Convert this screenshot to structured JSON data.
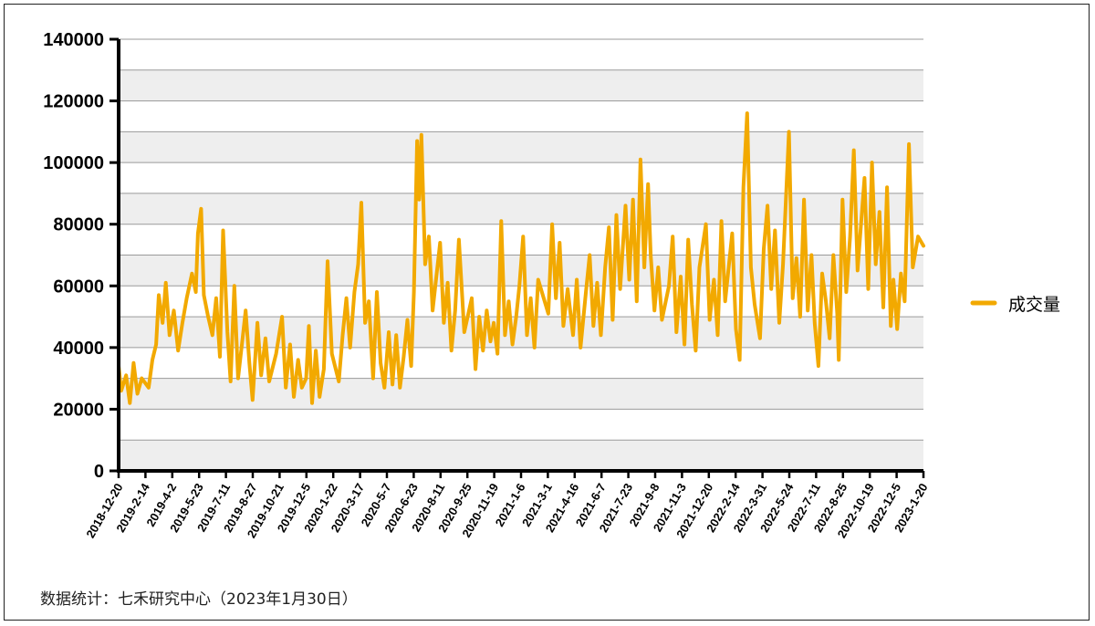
{
  "chart_data": {
    "type": "line",
    "title": "",
    "xlabel": "",
    "ylabel": "",
    "ylim": [
      0,
      140000
    ],
    "y_ticks": [
      0,
      20000,
      40000,
      60000,
      80000,
      100000,
      120000,
      140000
    ],
    "x_range": [
      "2018-12-20",
      "2023-01-30"
    ],
    "x_tick_labels": [
      "2018-12-20",
      "2019-2-14",
      "2019-4-2",
      "2019-5-23",
      "2019-7-11",
      "2019-8-27",
      "2019-10-21",
      "2019-12-5",
      "2020-1-22",
      "2020-3-17",
      "2020-5-7",
      "2020-6-23",
      "2020-8-11",
      "2020-9-25",
      "2020-11-19",
      "2021-1-6",
      "2021-3-1",
      "2021-4-16",
      "2021-6-7",
      "2021-7-23",
      "2021-9-8",
      "2021-11-3",
      "2021-12-20",
      "2022-2-14",
      "2022-3-31",
      "2022-5-24",
      "2022-7-11",
      "2022-8-25",
      "2022-10-19",
      "2022-12-5",
      "2023-1-20"
    ],
    "grid": "horizontal, alternating band shading",
    "legend_position": "right",
    "series": [
      {
        "name": "成交量",
        "color": "#F2A900",
        "points": [
          [
            "2018-12-20",
            34000
          ],
          [
            "2018-12-25",
            26000
          ],
          [
            "2019-1-3",
            31000
          ],
          [
            "2019-1-10",
            22000
          ],
          [
            "2019-1-17",
            35000
          ],
          [
            "2019-1-24",
            25000
          ],
          [
            "2019-2-1",
            30000
          ],
          [
            "2019-2-14",
            27000
          ],
          [
            "2019-2-21",
            36000
          ],
          [
            "2019-2-28",
            41000
          ],
          [
            "2019-3-5",
            57000
          ],
          [
            "2019-3-12",
            48000
          ],
          [
            "2019-3-18",
            61000
          ],
          [
            "2019-3-25",
            44000
          ],
          [
            "2019-4-2",
            52000
          ],
          [
            "2019-4-10",
            39000
          ],
          [
            "2019-4-18",
            48000
          ],
          [
            "2019-4-26",
            56000
          ],
          [
            "2019-5-6",
            64000
          ],
          [
            "2019-5-13",
            58000
          ],
          [
            "2019-5-17",
            77000
          ],
          [
            "2019-5-23",
            85000
          ],
          [
            "2019-5-28",
            57000
          ],
          [
            "2019-6-5",
            50000
          ],
          [
            "2019-6-13",
            44000
          ],
          [
            "2019-6-20",
            56000
          ],
          [
            "2019-6-27",
            37000
          ],
          [
            "2019-7-3",
            78000
          ],
          [
            "2019-7-11",
            45000
          ],
          [
            "2019-7-17",
            29000
          ],
          [
            "2019-7-24",
            60000
          ],
          [
            "2019-7-31",
            30000
          ],
          [
            "2019-8-7",
            41000
          ],
          [
            "2019-8-14",
            52000
          ],
          [
            "2019-8-21",
            35000
          ],
          [
            "2019-8-27",
            23000
          ],
          [
            "2019-9-5",
            48000
          ],
          [
            "2019-9-12",
            31000
          ],
          [
            "2019-9-20",
            43000
          ],
          [
            "2019-9-27",
            29000
          ],
          [
            "2019-10-10",
            38000
          ],
          [
            "2019-10-21",
            50000
          ],
          [
            "2019-10-28",
            27000
          ],
          [
            "2019-11-5",
            41000
          ],
          [
            "2019-11-12",
            24000
          ],
          [
            "2019-11-20",
            36000
          ],
          [
            "2019-11-27",
            27000
          ],
          [
            "2019-12-5",
            30000
          ],
          [
            "2019-12-10",
            47000
          ],
          [
            "2019-12-16",
            22000
          ],
          [
            "2019-12-23",
            39000
          ],
          [
            "2019-12-30",
            24000
          ],
          [
            "2020-1-7",
            33000
          ],
          [
            "2020-1-14",
            68000
          ],
          [
            "2020-1-22",
            38000
          ],
          [
            "2020-2-4",
            29000
          ],
          [
            "2020-2-11",
            44000
          ],
          [
            "2020-2-18",
            56000
          ],
          [
            "2020-2-25",
            40000
          ],
          [
            "2020-3-4",
            58000
          ],
          [
            "2020-3-11",
            67000
          ],
          [
            "2020-3-17",
            87000
          ],
          [
            "2020-3-24",
            48000
          ],
          [
            "2020-3-31",
            55000
          ],
          [
            "2020-4-8",
            30000
          ],
          [
            "2020-4-15",
            58000
          ],
          [
            "2020-4-22",
            35000
          ],
          [
            "2020-4-29",
            27000
          ],
          [
            "2020-5-7",
            45000
          ],
          [
            "2020-5-14",
            28000
          ],
          [
            "2020-5-21",
            44000
          ],
          [
            "2020-5-28",
            27000
          ],
          [
            "2020-6-4",
            37000
          ],
          [
            "2020-6-11",
            49000
          ],
          [
            "2020-6-18",
            34000
          ],
          [
            "2020-6-23",
            58000
          ],
          [
            "2020-6-29",
            107000
          ],
          [
            "2020-7-3",
            88000
          ],
          [
            "2020-7-7",
            109000
          ],
          [
            "2020-7-14",
            67000
          ],
          [
            "2020-7-21",
            76000
          ],
          [
            "2020-7-28",
            52000
          ],
          [
            "2020-8-4",
            63000
          ],
          [
            "2020-8-11",
            74000
          ],
          [
            "2020-8-18",
            48000
          ],
          [
            "2020-8-25",
            61000
          ],
          [
            "2020-9-1",
            39000
          ],
          [
            "2020-9-8",
            52000
          ],
          [
            "2020-9-15",
            75000
          ],
          [
            "2020-9-25",
            45000
          ],
          [
            "2020-10-9",
            56000
          ],
          [
            "2020-10-16",
            33000
          ],
          [
            "2020-10-23",
            50000
          ],
          [
            "2020-10-30",
            39000
          ],
          [
            "2020-11-6",
            52000
          ],
          [
            "2020-11-13",
            42000
          ],
          [
            "2020-11-19",
            48000
          ],
          [
            "2020-11-26",
            38000
          ],
          [
            "2020-12-3",
            81000
          ],
          [
            "2020-12-10",
            44000
          ],
          [
            "2020-12-17",
            55000
          ],
          [
            "2020-12-24",
            41000
          ],
          [
            "2020-12-31",
            50000
          ],
          [
            "2021-1-6",
            60000
          ],
          [
            "2021-1-13",
            76000
          ],
          [
            "2021-1-20",
            44000
          ],
          [
            "2021-1-27",
            56000
          ],
          [
            "2021-2-3",
            40000
          ],
          [
            "2021-2-10",
            62000
          ],
          [
            "2021-3-1",
            51000
          ],
          [
            "2021-3-8",
            80000
          ],
          [
            "2021-3-15",
            56000
          ],
          [
            "2021-3-22",
            74000
          ],
          [
            "2021-3-29",
            47000
          ],
          [
            "2021-4-6",
            59000
          ],
          [
            "2021-4-16",
            44000
          ],
          [
            "2021-4-23",
            62000
          ],
          [
            "2021-4-30",
            40000
          ],
          [
            "2021-5-10",
            58000
          ],
          [
            "2021-5-17",
            70000
          ],
          [
            "2021-5-24",
            47000
          ],
          [
            "2021-5-31",
            61000
          ],
          [
            "2021-6-7",
            44000
          ],
          [
            "2021-6-15",
            66000
          ],
          [
            "2021-6-22",
            79000
          ],
          [
            "2021-6-29",
            49000
          ],
          [
            "2021-7-6",
            83000
          ],
          [
            "2021-7-13",
            59000
          ],
          [
            "2021-7-23",
            86000
          ],
          [
            "2021-7-30",
            62000
          ],
          [
            "2021-8-6",
            88000
          ],
          [
            "2021-8-13",
            55000
          ],
          [
            "2021-8-20",
            101000
          ],
          [
            "2021-8-27",
            66000
          ],
          [
            "2021-9-3",
            93000
          ],
          [
            "2021-9-8",
            70000
          ],
          [
            "2021-9-15",
            52000
          ],
          [
            "2021-9-22",
            66000
          ],
          [
            "2021-9-29",
            49000
          ],
          [
            "2021-10-12",
            60000
          ],
          [
            "2021-10-19",
            76000
          ],
          [
            "2021-10-26",
            45000
          ],
          [
            "2021-11-3",
            63000
          ],
          [
            "2021-11-10",
            41000
          ],
          [
            "2021-11-17",
            75000
          ],
          [
            "2021-11-24",
            54000
          ],
          [
            "2021-12-1",
            39000
          ],
          [
            "2021-12-8",
            66000
          ],
          [
            "2021-12-20",
            80000
          ],
          [
            "2021-12-27",
            49000
          ],
          [
            "2022-1-4",
            62000
          ],
          [
            "2022-1-11",
            44000
          ],
          [
            "2022-1-18",
            81000
          ],
          [
            "2022-1-25",
            55000
          ],
          [
            "2022-2-7",
            77000
          ],
          [
            "2022-2-14",
            46000
          ],
          [
            "2022-2-21",
            36000
          ],
          [
            "2022-2-28",
            92000
          ],
          [
            "2022-3-7",
            116000
          ],
          [
            "2022-3-14",
            66000
          ],
          [
            "2022-3-21",
            54000
          ],
          [
            "2022-3-31",
            43000
          ],
          [
            "2022-4-7",
            72000
          ],
          [
            "2022-4-14",
            86000
          ],
          [
            "2022-4-21",
            59000
          ],
          [
            "2022-4-28",
            78000
          ],
          [
            "2022-5-6",
            48000
          ],
          [
            "2022-5-13",
            67000
          ],
          [
            "2022-5-24",
            110000
          ],
          [
            "2022-5-31",
            56000
          ],
          [
            "2022-6-7",
            69000
          ],
          [
            "2022-6-14",
            50000
          ],
          [
            "2022-6-21",
            88000
          ],
          [
            "2022-6-28",
            52000
          ],
          [
            "2022-7-5",
            70000
          ],
          [
            "2022-7-11",
            48000
          ],
          [
            "2022-7-18",
            34000
          ],
          [
            "2022-7-25",
            64000
          ],
          [
            "2022-8-1",
            55000
          ],
          [
            "2022-8-8",
            43000
          ],
          [
            "2022-8-15",
            70000
          ],
          [
            "2022-8-22",
            51000
          ],
          [
            "2022-8-25",
            36000
          ],
          [
            "2022-9-1",
            88000
          ],
          [
            "2022-9-8",
            58000
          ],
          [
            "2022-9-15",
            76000
          ],
          [
            "2022-9-22",
            104000
          ],
          [
            "2022-9-29",
            65000
          ],
          [
            "2022-10-12",
            95000
          ],
          [
            "2022-10-19",
            59000
          ],
          [
            "2022-10-26",
            100000
          ],
          [
            "2022-11-2",
            67000
          ],
          [
            "2022-11-9",
            84000
          ],
          [
            "2022-11-16",
            53000
          ],
          [
            "2022-11-23",
            92000
          ],
          [
            "2022-11-30",
            47000
          ],
          [
            "2022-12-5",
            62000
          ],
          [
            "2022-12-12",
            46000
          ],
          [
            "2022-12-19",
            64000
          ],
          [
            "2022-12-26",
            55000
          ],
          [
            "2023-1-3",
            106000
          ],
          [
            "2023-1-10",
            66000
          ],
          [
            "2023-1-20",
            76000
          ],
          [
            "2023-1-30",
            73000
          ]
        ]
      }
    ]
  },
  "legend": {
    "label": "成交量"
  },
  "footer": {
    "source": "数据统计：七禾研究中心（2023年1月30日）"
  }
}
